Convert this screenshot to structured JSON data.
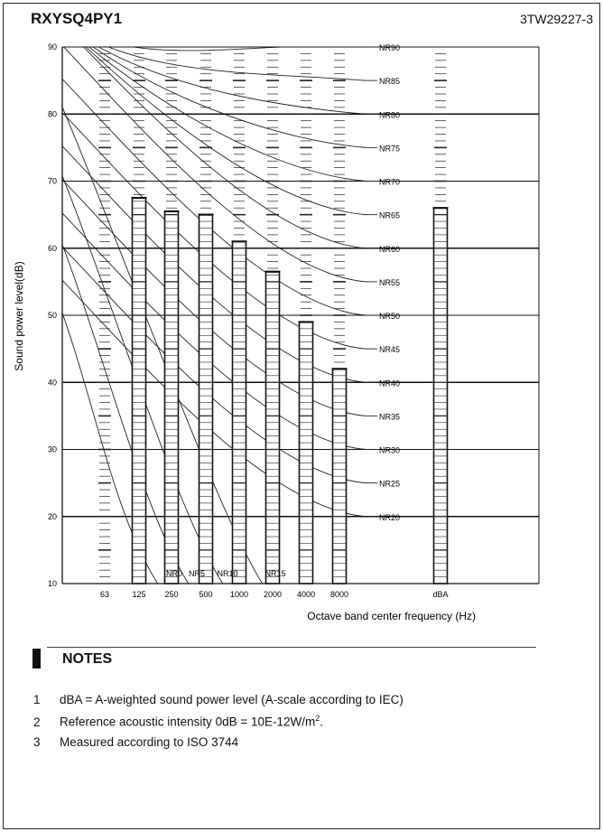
{
  "header": {
    "model": "RXYSQ4PY1",
    "doc_id": "3TW29227-3"
  },
  "chart_data": {
    "type": "bar",
    "title": "",
    "xlabel": "Octave band center frequency (Hz)",
    "ylabel": "Sound power level(dB)",
    "ylim": [
      10,
      90
    ],
    "y_ticks": [
      "10",
      "20",
      "30",
      "40",
      "50",
      "60",
      "70",
      "80",
      "90"
    ],
    "categories": [
      "63",
      "125",
      "250",
      "500",
      "1000",
      "2000",
      "4000",
      "8000",
      "dBA"
    ],
    "values": [
      null,
      67.5,
      65.5,
      65,
      61,
      56.5,
      49,
      42,
      66
    ],
    "nr_curves": [
      "NR0",
      "NR5",
      "NR10",
      "NR15",
      "NR20",
      "NR25",
      "NR30",
      "NR35",
      "NR40",
      "NR45",
      "NR50",
      "NR55",
      "NR60",
      "NR65",
      "NR70",
      "NR75",
      "NR80",
      "NR85",
      "NR90"
    ],
    "grid": true
  },
  "notes": {
    "title": "NOTES",
    "items": [
      {
        "num": "1",
        "text": "dBA = A-weighted sound power level (A-scale according to IEC)"
      },
      {
        "num": "2",
        "text": "Reference acoustic intensity 0dB = 10E-12W/m",
        "sup": "2",
        "tail": "."
      },
      {
        "num": "3",
        "text": "Measured according to ISO 3744"
      }
    ]
  }
}
